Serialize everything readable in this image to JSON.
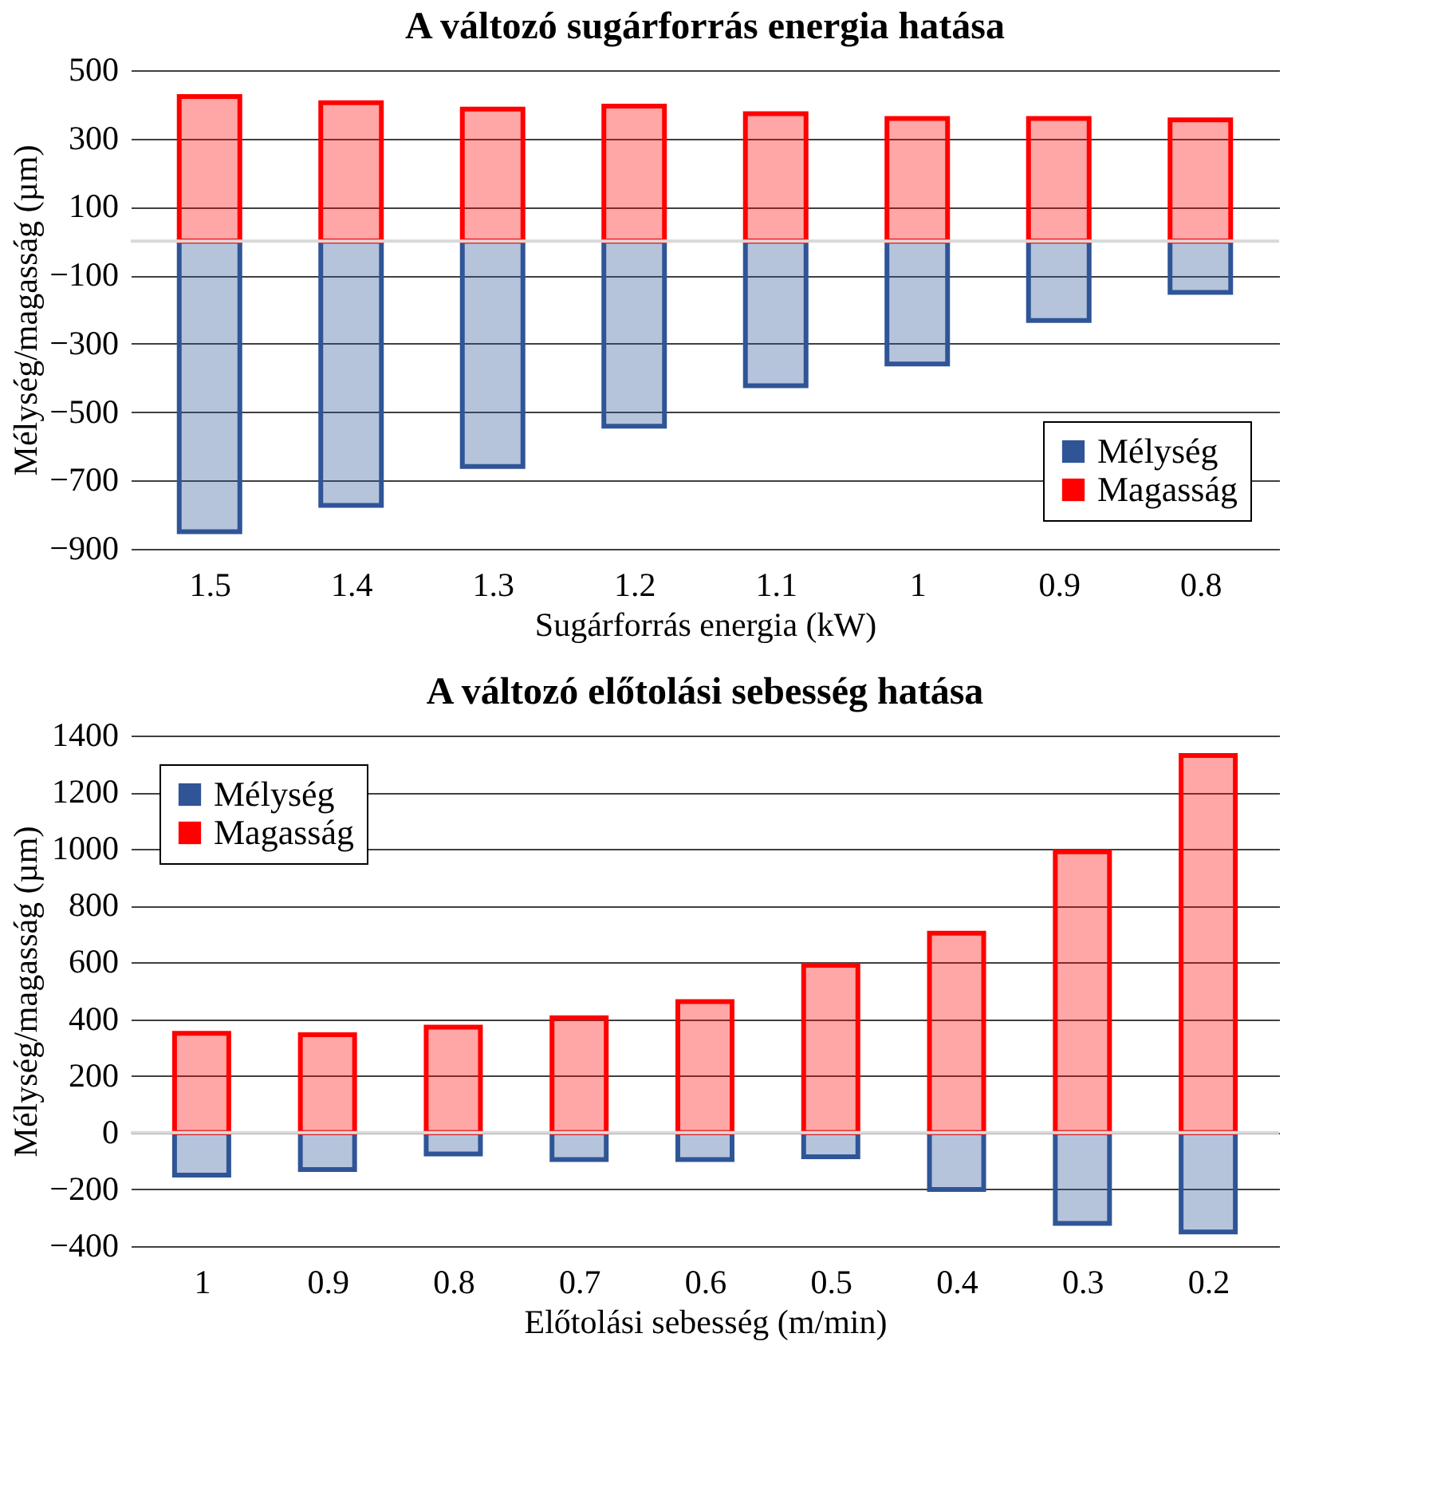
{
  "chart_data": [
    {
      "type": "bar",
      "title": "A változó sugárforrás energia hatása",
      "xlabel": "Sugárforrás energia (kW)",
      "ylabel": "Mélység/magasság (µm)",
      "categories": [
        "1.5",
        "1.4",
        "1.3",
        "1.2",
        "1.1",
        "1",
        "0.9",
        "0.8"
      ],
      "series": [
        {
          "name": "Mélység",
          "color": "#2f5597",
          "values": [
            -850,
            -773,
            -659,
            -541,
            -423,
            -359,
            -232,
            -150
          ]
        },
        {
          "name": "Magasság",
          "color": "#ff0000",
          "values": [
            423,
            405,
            386,
            395,
            373,
            359,
            359,
            355
          ]
        }
      ],
      "stacked": true,
      "ylim": [
        -900,
        500
      ],
      "yticks": [
        -900,
        -700,
        -500,
        -300,
        -100,
        100,
        300,
        500
      ],
      "grid": "y",
      "legend": "bottom right",
      "ref_lines": [
        {
          "axis": "y",
          "value": 0,
          "color": "#d9d9d9"
        }
      ]
    },
    {
      "type": "bar",
      "title": "A változó előtolási sebesség hatása",
      "xlabel": "Előtolási sebesség (m/min)",
      "ylabel": "Mélység/magasság (µm)",
      "categories": [
        "1",
        "0.9",
        "0.8",
        "0.7",
        "0.6",
        "0.5",
        "0.4",
        "0.3",
        "0.2"
      ],
      "series": [
        {
          "name": "Mélység",
          "color": "#2f5597",
          "values": [
            -150,
            -130,
            -75,
            -95,
            -95,
            -85,
            -200,
            -320,
            -350
          ]
        },
        {
          "name": "Magasság",
          "color": "#ff0000",
          "values": [
            350,
            345,
            372,
            405,
            462,
            590,
            703,
            990,
            1330
          ]
        }
      ],
      "stacked": true,
      "ylim": [
        -400,
        1400
      ],
      "yticks": [
        -400,
        -200,
        0,
        200,
        400,
        600,
        800,
        1000,
        1200,
        1400
      ],
      "grid": "y",
      "legend": "top left",
      "ref_lines": [
        {
          "axis": "y",
          "value": 0,
          "color": "#d9d9d9"
        }
      ]
    }
  ]
}
